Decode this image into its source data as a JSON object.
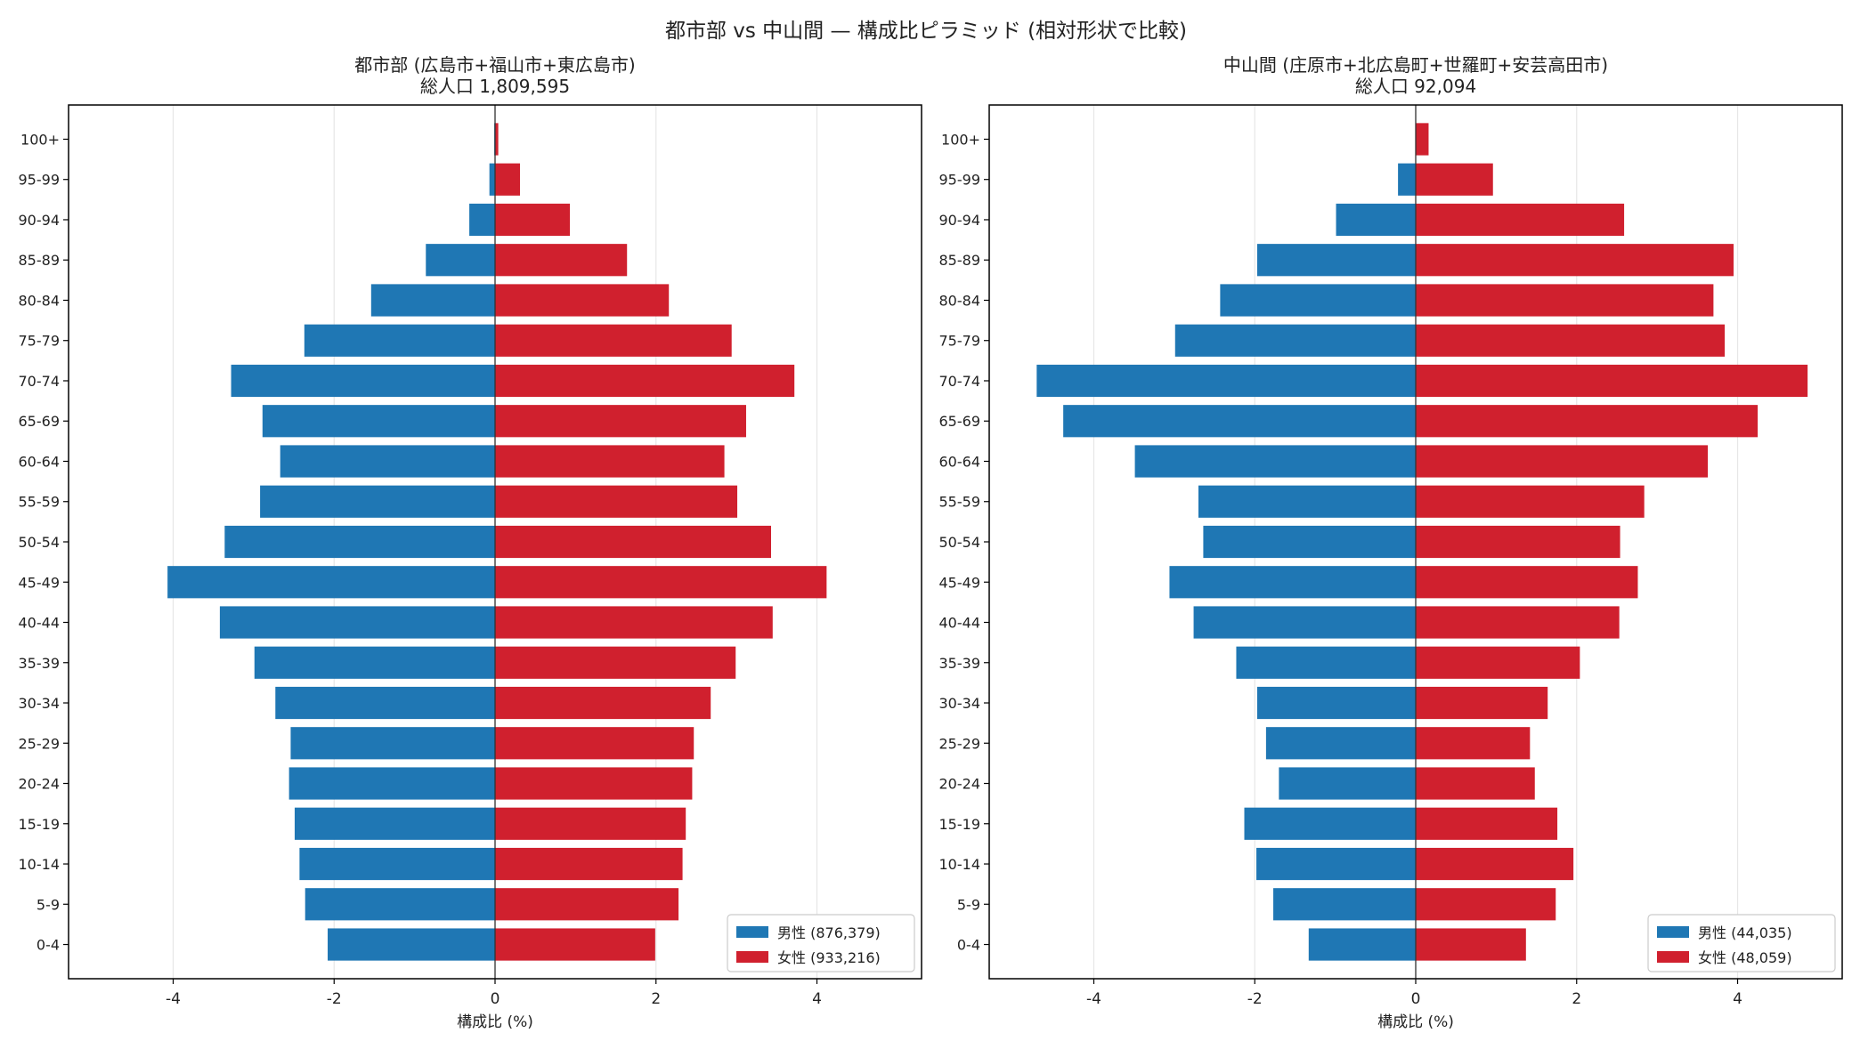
{
  "figure": {
    "suptitle": "都市部 vs 中山間 — 構成比ピラミッド (相対形状で比較)"
  },
  "colors": {
    "male": "#1f77b4",
    "female": "#d0202e"
  },
  "chart_data": [
    {
      "type": "bar",
      "orientation": "horizontal-pyramid",
      "title": "都市部 (広島市+福山市+東広島市)",
      "subtitle": "総人口 1,809,595",
      "xlabel": "構成比 (%)",
      "ylabel": "",
      "xlim": [
        -5.3,
        5.3
      ],
      "xticks": [
        -4,
        -2,
        0,
        2,
        4
      ],
      "grid": true,
      "legend_position": "lower-right",
      "categories": [
        "100+",
        "95-99",
        "90-94",
        "85-89",
        "80-84",
        "75-79",
        "70-74",
        "65-69",
        "60-64",
        "55-59",
        "50-54",
        "45-49",
        "40-44",
        "35-39",
        "30-34",
        "25-29",
        "20-24",
        "15-19",
        "10-14",
        "5-9",
        "0-4"
      ],
      "series": [
        {
          "name": "男性 (876,379)",
          "key": "male",
          "values": [
            -0.01,
            -0.07,
            -0.32,
            -0.86,
            -1.54,
            -2.37,
            -3.28,
            -2.89,
            -2.67,
            -2.92,
            -3.36,
            -4.07,
            -3.42,
            -2.99,
            -2.73,
            -2.54,
            -2.56,
            -2.49,
            -2.43,
            -2.36,
            -2.08
          ]
        },
        {
          "name": "女性 (933,216)",
          "key": "female",
          "values": [
            0.04,
            0.31,
            0.93,
            1.64,
            2.16,
            2.94,
            3.72,
            3.12,
            2.85,
            3.01,
            3.43,
            4.12,
            3.45,
            2.99,
            2.68,
            2.47,
            2.45,
            2.37,
            2.33,
            2.28,
            1.99
          ]
        }
      ]
    },
    {
      "type": "bar",
      "orientation": "horizontal-pyramid",
      "title": "中山間 (庄原市+北広島町+世羅町+安芸高田市)",
      "subtitle": "総人口 92,094",
      "xlabel": "構成比 (%)",
      "ylabel": "",
      "xlim": [
        -5.3,
        5.3
      ],
      "xticks": [
        -4,
        -2,
        0,
        2,
        4
      ],
      "grid": true,
      "legend_position": "lower-right",
      "categories": [
        "100+",
        "95-99",
        "90-94",
        "85-89",
        "80-84",
        "75-79",
        "70-74",
        "65-69",
        "60-64",
        "55-59",
        "50-54",
        "45-49",
        "40-44",
        "35-39",
        "30-34",
        "25-29",
        "20-24",
        "15-19",
        "10-14",
        "5-9",
        "0-4"
      ],
      "series": [
        {
          "name": "男性 (44,035)",
          "key": "male",
          "values": [
            0,
            -0.22,
            -0.99,
            -1.97,
            -2.43,
            -2.99,
            -4.71,
            -4.38,
            -3.49,
            -2.7,
            -2.64,
            -3.06,
            -2.76,
            -2.23,
            -1.97,
            -1.86,
            -1.7,
            -2.13,
            -1.98,
            -1.77,
            -1.33
          ]
        },
        {
          "name": "女性 (48,059)",
          "key": "female",
          "values": [
            0.16,
            0.96,
            2.59,
            3.95,
            3.7,
            3.84,
            4.87,
            4.25,
            3.63,
            2.84,
            2.54,
            2.76,
            2.53,
            2.04,
            1.64,
            1.42,
            1.48,
            1.76,
            1.96,
            1.74,
            1.37
          ]
        }
      ]
    }
  ]
}
